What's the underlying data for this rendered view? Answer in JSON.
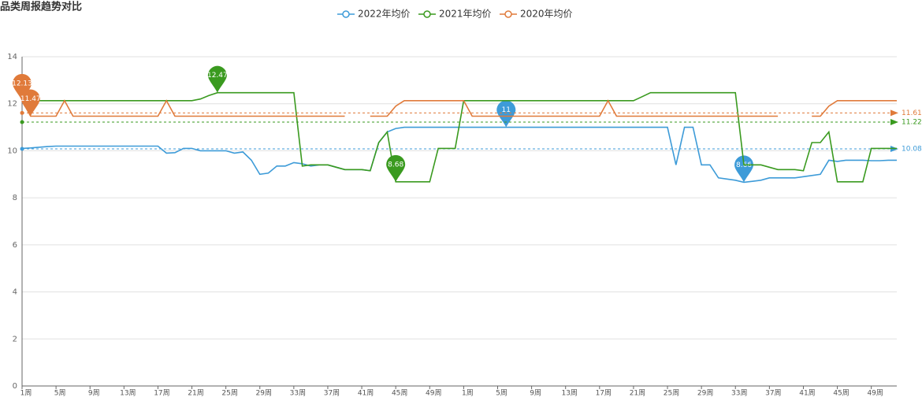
{
  "chart_data": {
    "type": "line",
    "title": "品类周报趋势对比",
    "categories": [
      "1周",
      null,
      null,
      null,
      "5周",
      null,
      null,
      null,
      "9周",
      null,
      null,
      null,
      "13周",
      null,
      null,
      null,
      "17周",
      null,
      null,
      null,
      "21周",
      null,
      null,
      null,
      "25周",
      null,
      null,
      null,
      "29周",
      null,
      null,
      null,
      "33周",
      null,
      null,
      null,
      "37周",
      null,
      null,
      null,
      "41周",
      null,
      null,
      null,
      "45周",
      null,
      null,
      null,
      "49周",
      null,
      null,
      null,
      "1周",
      null,
      null,
      null,
      "5周",
      null,
      null,
      null,
      "9周",
      null,
      null,
      null,
      "13周",
      null,
      null,
      null,
      "17周",
      null,
      null,
      null,
      "21周",
      null,
      null,
      null,
      "25周",
      null,
      null,
      null,
      "29周",
      null,
      null,
      null,
      "33周",
      null,
      null,
      null,
      "37周",
      null,
      null,
      null,
      "41周",
      null,
      null,
      null,
      "45周",
      null,
      null,
      null,
      "49周",
      null,
      null,
      null
    ],
    "ylim": [
      0,
      14
    ],
    "yticks": [
      0,
      2,
      4,
      6,
      8,
      10,
      12,
      14
    ],
    "grid": true,
    "series": [
      {
        "name": "2022年均价",
        "color": "#3d9bd8",
        "average": 10.08,
        "mark_points": [
          57,
          85
        ],
        "values": [
          10.1,
          10.12,
          10.15,
          10.18,
          10.2,
          10.2,
          10.2,
          10.2,
          10.2,
          10.2,
          10.2,
          10.2,
          10.2,
          10.2,
          10.2,
          10.2,
          10.2,
          9.9,
          9.92,
          10.1,
          10.1,
          10.0,
          10.0,
          10.0,
          10.0,
          9.9,
          9.95,
          9.6,
          9.0,
          9.05,
          9.35,
          9.35,
          9.5,
          9.45,
          9.35,
          9.4,
          9.4,
          9.3,
          9.2,
          9.2,
          9.2,
          9.15,
          10.35,
          10.8,
          10.95,
          11,
          11,
          11,
          11,
          11,
          11,
          11,
          11,
          11,
          11,
          11,
          11,
          11,
          11,
          11,
          11,
          11,
          11,
          11,
          11,
          11,
          11,
          11,
          11,
          11,
          11,
          11,
          11,
          11,
          11,
          11,
          11,
          9.4,
          11,
          11,
          9.4,
          9.4,
          8.85,
          8.8,
          8.75,
          8.66,
          8.7,
          8.75,
          8.85,
          8.85,
          8.85,
          8.85,
          8.9,
          8.95,
          9.0,
          9.6,
          9.55,
          9.6,
          9.6,
          9.6,
          9.58,
          9.58,
          9.6,
          9.6
        ]
      },
      {
        "name": "2021年均价",
        "color": "#3a9a1f",
        "average": 11.22,
        "mark_points": [
          23,
          44
        ],
        "values": [
          12.13,
          12.13,
          12.13,
          12.13,
          12.13,
          12.13,
          12.13,
          12.13,
          12.13,
          12.13,
          12.13,
          12.13,
          12.13,
          12.13,
          12.13,
          12.13,
          12.13,
          12.13,
          12.13,
          12.13,
          12.13,
          12.2,
          12.35,
          12.47,
          12.47,
          12.47,
          12.47,
          12.47,
          12.47,
          12.47,
          12.47,
          12.47,
          12.47,
          9.35,
          9.4,
          9.4,
          9.4,
          9.3,
          9.2,
          9.2,
          9.2,
          9.15,
          10.35,
          10.8,
          8.68,
          8.68,
          8.68,
          8.68,
          8.68,
          10.1,
          10.1,
          10.1,
          12.13,
          12.13,
          12.13,
          12.13,
          12.13,
          12.13,
          12.13,
          12.13,
          12.13,
          12.13,
          12.13,
          12.13,
          12.13,
          12.13,
          12.13,
          12.13,
          12.13,
          12.13,
          12.13,
          12.13,
          12.13,
          12.3,
          12.47,
          12.47,
          12.47,
          12.47,
          12.47,
          12.47,
          12.47,
          12.47,
          12.47,
          12.47,
          12.47,
          9.4,
          9.4,
          9.4,
          9.3,
          9.2,
          9.2,
          9.2,
          9.15,
          10.35,
          10.35,
          10.8,
          8.68,
          8.68,
          8.68,
          8.68,
          10.1,
          10.1,
          10.1,
          10.1
        ]
      },
      {
        "name": "2020年均价",
        "color": "#e07a3a",
        "average": 11.61,
        "mark_points": [
          0,
          1
        ],
        "values": [
          12.13,
          11.47,
          11.47,
          11.47,
          11.47,
          12.13,
          11.47,
          11.47,
          11.47,
          11.47,
          11.47,
          11.47,
          11.47,
          11.47,
          11.47,
          11.47,
          11.47,
          12.13,
          11.47,
          11.47,
          11.47,
          11.47,
          11.47,
          11.47,
          11.47,
          11.47,
          11.47,
          11.47,
          11.47,
          11.47,
          11.47,
          11.47,
          11.47,
          11.47,
          11.47,
          11.47,
          11.47,
          11.47,
          11.47,
          null,
          null,
          11.47,
          11.47,
          11.47,
          11.9,
          12.13,
          12.13,
          12.13,
          12.13,
          12.13,
          12.13,
          12.13,
          12.13,
          11.47,
          11.47,
          11.47,
          11.47,
          11.47,
          11.47,
          11.47,
          11.47,
          11.47,
          11.47,
          11.47,
          11.47,
          11.47,
          11.47,
          11.47,
          11.47,
          12.13,
          11.47,
          11.47,
          11.47,
          11.47,
          11.47,
          11.47,
          11.47,
          11.47,
          11.47,
          11.47,
          11.47,
          11.47,
          11.47,
          11.47,
          11.47,
          11.47,
          11.47,
          11.47,
          11.47,
          11.47,
          null,
          null,
          null,
          11.47,
          11.47,
          11.9,
          12.13,
          12.13,
          12.13,
          12.13,
          12.13,
          12.13,
          12.13,
          12.13
        ]
      }
    ]
  }
}
